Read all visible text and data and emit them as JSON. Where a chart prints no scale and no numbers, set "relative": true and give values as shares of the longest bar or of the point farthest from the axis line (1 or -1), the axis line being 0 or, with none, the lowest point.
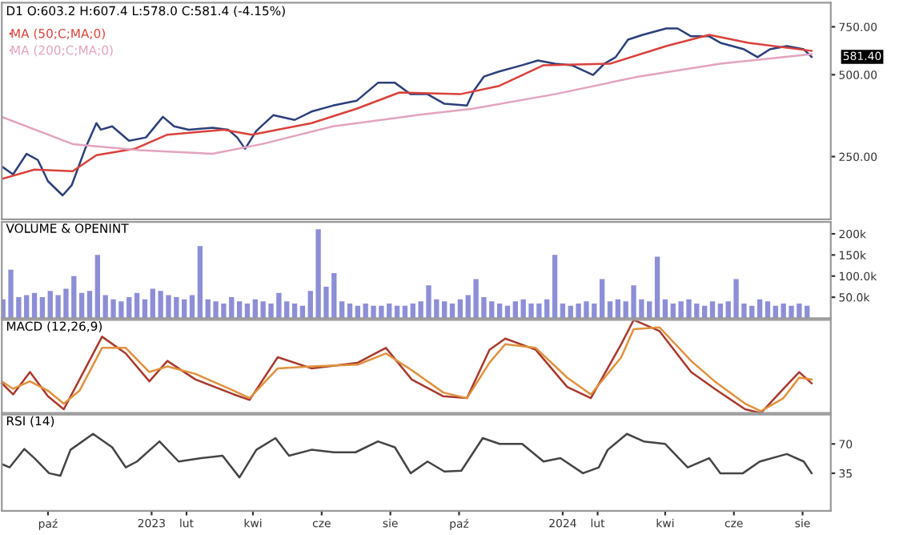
{
  "chart_data": [
    {
      "type": "line",
      "title": "D1 O:603.2 H:607.4 L:578.0 C:581.4 (-4.15%)",
      "log": "y",
      "legend": "top left",
      "tick_labels": "y",
      "xlim": [
        "2022-08-21",
        "2024-08-26"
      ],
      "ylim": [
        147,
        920
      ],
      "yticks": [
        {
          "value": 250,
          "label": "250.00"
        },
        {
          "value": 500,
          "label": "500.00"
        },
        {
          "value": 750,
          "label": "750.00"
        }
      ],
      "annotations": [
        {
          "text": "581.40",
          "x": "2024-08-09",
          "y": 581.4
        }
      ],
      "series": [
        {
          "color": "#2b3f7a",
          "x": [
            "2022-08-21",
            "2022-08-31",
            "2022-09-12",
            "2022-09-22",
            "2022-10-01",
            "2022-10-14",
            "2022-10-22",
            "2022-11-03",
            "2022-11-13",
            "2022-11-17",
            "2022-11-27",
            "2022-12-12",
            "2022-12-27",
            "2023-01-11",
            "2023-01-21",
            "2023-02-03",
            "2023-02-24",
            "2023-03-10",
            "2023-03-18",
            "2023-03-25",
            "2023-04-04",
            "2023-04-19",
            "2023-05-08",
            "2023-05-23",
            "2023-06-11",
            "2023-07-02",
            "2023-07-21",
            "2023-08-05",
            "2023-08-19",
            "2023-09-03",
            "2023-09-18",
            "2023-10-08",
            "2023-10-14",
            "2023-10-23",
            "2023-11-05",
            "2023-11-26",
            "2023-12-10",
            "2023-12-25",
            "2024-01-09",
            "2024-01-28",
            "2024-02-07",
            "2024-02-17",
            "2024-02-28",
            "2024-03-12",
            "2024-04-02",
            "2024-04-12",
            "2024-04-24",
            "2024-05-10",
            "2024-05-20",
            "2024-06-10",
            "2024-06-22",
            "2024-07-03",
            "2024-07-18",
            "2024-08-02",
            "2024-08-09"
          ],
          "values": [
            230,
            215,
            256,
            243,
            203,
            180,
            196,
            267,
            332,
            314,
            323,
            286,
            294,
            350,
            323,
            314,
            319,
            314,
            294,
            267,
            311,
            355,
            341,
            366,
            385,
            401,
            467,
            467,
            424,
            424,
            391,
            385,
            436,
            492,
            513,
            542,
            564,
            549,
            542,
            499,
            549,
            580,
            673,
            701,
            740,
            740,
            692,
            692,
            655,
            620,
            580,
            620,
            637,
            620,
            581.4
          ]
        },
        {
          "name": "MA (50;C;MA;0)",
          "color": "#d9413a",
          "x": [
            "2022-08-21",
            "2022-09-19",
            "2022-10-23",
            "2022-11-13",
            "2022-12-17",
            "2023-01-15",
            "2023-03-06",
            "2023-03-31",
            "2023-05-23",
            "2023-07-02",
            "2023-08-09",
            "2023-10-02",
            "2023-11-05",
            "2023-12-15",
            "2024-02-12",
            "2024-04-02",
            "2024-05-10",
            "2024-06-14",
            "2024-08-09"
          ],
          "values": [
            207,
            224,
            221,
            253,
            267,
            301,
            314,
            301,
            332,
            375,
            430,
            424,
            454,
            542,
            549,
            637,
            701,
            655,
            612
          ]
        },
        {
          "name": "MA (200;C;MA;0)",
          "color": "#e3a3bf",
          "x": [
            "2022-08-21",
            "2022-10-23",
            "2022-12-21",
            "2023-02-24",
            "2023-04-09",
            "2023-06-11",
            "2023-08-24",
            "2023-10-13",
            "2023-12-25",
            "2024-03-08",
            "2024-05-20",
            "2024-08-09"
          ],
          "values": [
            350,
            278,
            264,
            256,
            278,
            323,
            355,
            375,
            424,
            492,
            549,
            595
          ]
        }
      ]
    },
    {
      "type": "bar",
      "title": "VOLUME & OPENINT",
      "tick_labels": "y",
      "xlim": [
        "2022-08-21",
        "2024-08-26"
      ],
      "ylim": [
        0,
        228000
      ],
      "yticks": [
        {
          "value": 50000,
          "label": "50.0k"
        },
        {
          "value": 100000,
          "label": "100.0k"
        },
        {
          "value": 150000,
          "label": "150k"
        },
        {
          "value": 200000,
          "label": "200k"
        }
      ],
      "series": [
        {
          "color": "#8c8fd6",
          "x": [
            "2022-08-22",
            "2022-08-29",
            "2022-09-05",
            "2022-09-12",
            "2022-09-19",
            "2022-09-26",
            "2022-10-03",
            "2022-10-10",
            "2022-10-17",
            "2022-10-24",
            "2022-10-31",
            "2022-11-07",
            "2022-11-14",
            "2022-11-21",
            "2022-11-28",
            "2022-12-05",
            "2022-12-12",
            "2022-12-19",
            "2022-12-26",
            "2023-01-02",
            "2023-01-09",
            "2023-01-16",
            "2023-01-23",
            "2023-01-30",
            "2023-02-06",
            "2023-02-13",
            "2023-02-20",
            "2023-02-27",
            "2023-03-06",
            "2023-03-13",
            "2023-03-20",
            "2023-03-27",
            "2023-04-03",
            "2023-04-10",
            "2023-04-17",
            "2023-04-24",
            "2023-05-01",
            "2023-05-08",
            "2023-05-15",
            "2023-05-22",
            "2023-05-29",
            "2023-06-05",
            "2023-06-12",
            "2023-06-19",
            "2023-06-26",
            "2023-07-03",
            "2023-07-10",
            "2023-07-17",
            "2023-07-24",
            "2023-07-31",
            "2023-08-07",
            "2023-08-14",
            "2023-08-21",
            "2023-08-28",
            "2023-09-04",
            "2023-09-11",
            "2023-09-18",
            "2023-09-25",
            "2023-10-02",
            "2023-10-09",
            "2023-10-16",
            "2023-10-23",
            "2023-10-30",
            "2023-11-06",
            "2023-11-13",
            "2023-11-20",
            "2023-11-27",
            "2023-12-04",
            "2023-12-11",
            "2023-12-18",
            "2023-12-25",
            "2024-01-01",
            "2024-01-08",
            "2024-01-15",
            "2024-01-22",
            "2024-01-29",
            "2024-02-05",
            "2024-02-12",
            "2024-02-19",
            "2024-02-26",
            "2024-03-04",
            "2024-03-11",
            "2024-03-18",
            "2024-03-25",
            "2024-04-01",
            "2024-04-08",
            "2024-04-15",
            "2024-04-22",
            "2024-04-29",
            "2024-05-06",
            "2024-05-13",
            "2024-05-20",
            "2024-05-27",
            "2024-06-03",
            "2024-06-10",
            "2024-06-17",
            "2024-06-24",
            "2024-07-01",
            "2024-07-08",
            "2024-07-15",
            "2024-07-22",
            "2024-07-29",
            "2024-08-05"
          ],
          "values": [
            45000,
            115000,
            50000,
            55000,
            60000,
            50000,
            65000,
            55000,
            70000,
            100000,
            60000,
            65000,
            150000,
            55000,
            45000,
            40000,
            50000,
            60000,
            45000,
            70000,
            65000,
            55000,
            50000,
            45000,
            55000,
            171000,
            45000,
            40000,
            35000,
            50000,
            40000,
            35000,
            45000,
            40000,
            35000,
            60000,
            40000,
            35000,
            30000,
            65000,
            211000,
            75000,
            107000,
            40000,
            35000,
            30000,
            35000,
            30000,
            30000,
            35000,
            30000,
            30000,
            35000,
            40000,
            78000,
            45000,
            40000,
            35000,
            45000,
            55000,
            93000,
            50000,
            40000,
            35000,
            30000,
            40000,
            45000,
            35000,
            35000,
            45000,
            150000,
            35000,
            30000,
            35000,
            40000,
            35000,
            93000,
            40000,
            45000,
            40000,
            78000,
            45000,
            40000,
            146000,
            45000,
            35000,
            40000,
            45000,
            35000,
            30000,
            40000,
            35000,
            40000,
            93000,
            35000,
            30000,
            45000,
            40000,
            30000,
            35000,
            30000,
            35000,
            30000
          ]
        }
      ]
    },
    {
      "type": "line",
      "title": "MACD (12,26,9)",
      "relative": true,
      "tick_labels": false,
      "xlim": [
        "2022-08-21",
        "2024-08-26"
      ],
      "x": [
        "2022-08-21",
        "2022-08-31",
        "2022-09-15",
        "2022-10-01",
        "2022-10-15",
        "2022-10-29",
        "2022-11-18",
        "2022-12-09",
        "2022-12-30",
        "2023-01-15",
        "2023-02-09",
        "2023-03-15",
        "2023-03-29",
        "2023-04-23",
        "2023-05-23",
        "2023-07-03",
        "2023-07-28",
        "2023-08-20",
        "2023-09-17",
        "2023-10-08",
        "2023-10-28",
        "2023-11-11",
        "2023-12-08",
        "2024-01-05",
        "2024-01-26",
        "2024-02-22",
        "2024-03-04",
        "2024-03-27",
        "2024-04-24",
        "2024-05-15",
        "2024-06-11",
        "2024-06-25",
        "2024-07-15",
        "2024-07-29",
        "2024-08-09"
      ],
      "series": [
        {
          "color": "#a8392c",
          "values": [
            0.32,
            0.2,
            0.44,
            0.18,
            0.04,
            0.36,
            0.82,
            0.64,
            0.34,
            0.56,
            0.36,
            0.2,
            0.14,
            0.6,
            0.48,
            0.54,
            0.7,
            0.36,
            0.18,
            0.16,
            0.68,
            0.8,
            0.68,
            0.28,
            0.16,
            0.74,
            1.0,
            0.88,
            0.44,
            0.26,
            0.04,
            0.0,
            0.26,
            0.44,
            0.32
          ]
        },
        {
          "color": "#e0913c",
          "values": [
            0.34,
            0.26,
            0.34,
            0.24,
            0.1,
            0.24,
            0.7,
            0.7,
            0.44,
            0.5,
            0.42,
            0.24,
            0.16,
            0.48,
            0.5,
            0.52,
            0.64,
            0.46,
            0.22,
            0.16,
            0.54,
            0.74,
            0.7,
            0.38,
            0.2,
            0.6,
            0.9,
            0.92,
            0.56,
            0.34,
            0.1,
            0.02,
            0.16,
            0.38,
            0.36
          ]
        }
      ]
    },
    {
      "type": "line",
      "title": "RSI (14)",
      "xlim": [
        "2022-08-21",
        "2024-08-26"
      ],
      "ylim": [
        -10,
        105
      ],
      "yticks": [
        {
          "value": 35,
          "label": "35"
        },
        70
      ],
      "xticks": [
        {
          "value": "2022-10-01",
          "label": "paź"
        },
        {
          "value": "2023-01-01",
          "label": "2023"
        },
        {
          "value": "2023-02-01",
          "label": "lut"
        },
        {
          "value": "2023-04-01",
          "label": "kwi"
        },
        {
          "value": "2023-06-01",
          "label": "cze"
        },
        {
          "value": "2023-08-01",
          "label": "sie"
        },
        {
          "value": "2023-10-01",
          "label": "paź"
        },
        {
          "value": "2024-01-01",
          "label": "2024"
        },
        {
          "value": "2024-02-01",
          "label": "lut"
        },
        {
          "value": "2024-04-01",
          "label": "kwi"
        },
        {
          "value": "2024-06-01",
          "label": "cze"
        },
        {
          "value": "2024-08-01",
          "label": "sie"
        }
      ],
      "series": [
        {
          "color": "#444444",
          "x": [
            "2022-08-21",
            "2022-08-28",
            "2022-09-10",
            "2022-09-19",
            "2022-10-02",
            "2022-10-12",
            "2022-10-21",
            "2022-11-10",
            "2022-11-27",
            "2022-12-09",
            "2022-12-19",
            "2023-01-08",
            "2023-01-25",
            "2023-02-14",
            "2023-03-05",
            "2023-03-20",
            "2023-04-04",
            "2023-04-21",
            "2023-05-03",
            "2023-05-23",
            "2023-06-12",
            "2023-07-01",
            "2023-07-21",
            "2023-08-05",
            "2023-08-19",
            "2023-09-03",
            "2023-09-18",
            "2023-10-03",
            "2023-10-22",
            "2023-11-06",
            "2023-11-26",
            "2023-12-15",
            "2023-12-30",
            "2024-01-19",
            "2024-02-02",
            "2024-02-10",
            "2024-02-27",
            "2024-03-13",
            "2024-04-01",
            "2024-04-21",
            "2024-05-10",
            "2024-05-20",
            "2024-06-09",
            "2024-06-24",
            "2024-07-18",
            "2024-08-02",
            "2024-08-09"
          ],
          "values": [
            46,
            42,
            64,
            53,
            35,
            32,
            63,
            82,
            66,
            42,
            49,
            73,
            49,
            53,
            56,
            30,
            63,
            77,
            56,
            63,
            60,
            60,
            73,
            66,
            35,
            49,
            37,
            38,
            77,
            70,
            70,
            49,
            53,
            35,
            42,
            63,
            82,
            73,
            70,
            42,
            53,
            35,
            35,
            49,
            58,
            49,
            35
          ]
        }
      ]
    }
  ]
}
